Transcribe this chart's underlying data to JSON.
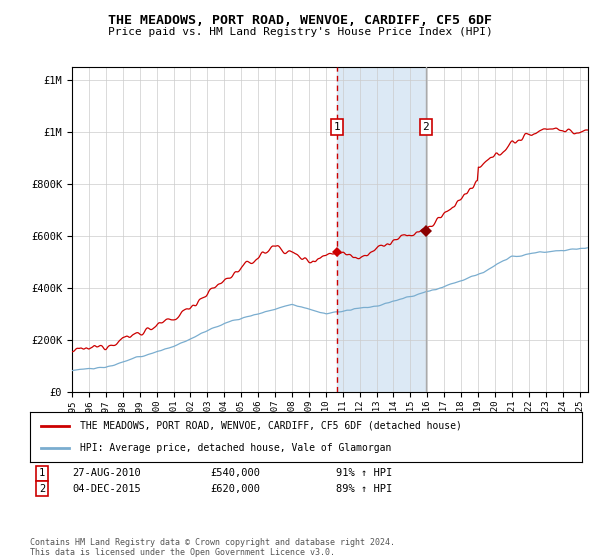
{
  "title": "THE MEADOWS, PORT ROAD, WENVOE, CARDIFF, CF5 6DF",
  "subtitle": "Price paid vs. HM Land Registry's House Price Index (HPI)",
  "ylim": [
    0,
    1250000
  ],
  "xlim_start": 1995.0,
  "xlim_end": 2025.5,
  "sale1_x": 2010.65,
  "sale1_y": 540000,
  "sale1_label": "1",
  "sale1_date": "27-AUG-2010",
  "sale1_price": "£540,000",
  "sale1_hpi": "91% ↑ HPI",
  "sale2_x": 2015.92,
  "sale2_y": 620000,
  "sale2_label": "2",
  "sale2_date": "04-DEC-2015",
  "sale2_price": "£620,000",
  "sale2_hpi": "89% ↑ HPI",
  "red_color": "#cc0000",
  "blue_color": "#7aadcf",
  "shade_color": "#dce9f5",
  "legend_label1": "THE MEADOWS, PORT ROAD, WENVOE, CARDIFF, CF5 6DF (detached house)",
  "legend_label2": "HPI: Average price, detached house, Vale of Glamorgan",
  "footnote": "Contains HM Land Registry data © Crown copyright and database right 2024.\nThis data is licensed under the Open Government Licence v3.0."
}
